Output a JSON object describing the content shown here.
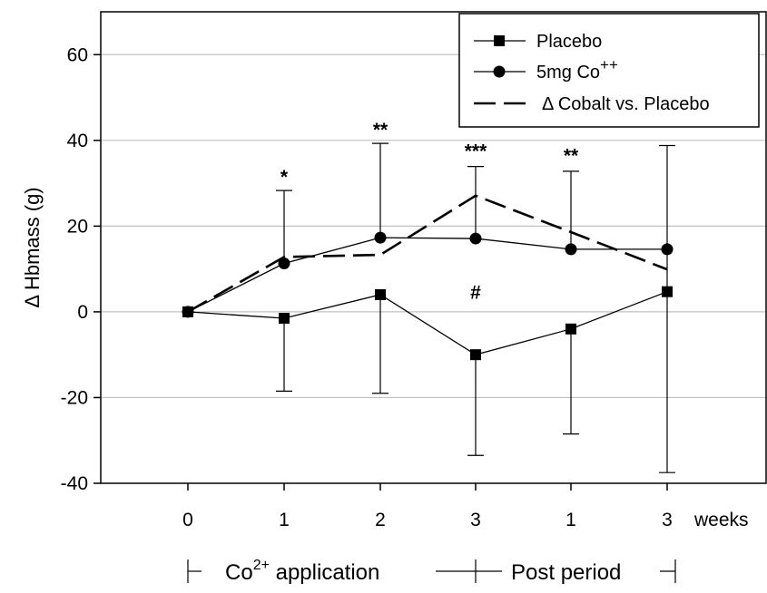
{
  "chart_data": {
    "type": "line",
    "ylabel": "Δ Hbmass (g)",
    "ylim": [
      -40,
      70
    ],
    "yticks": [
      -40,
      -20,
      0,
      20,
      40,
      60
    ],
    "grid": true,
    "legend_position": "top-right",
    "x_unit": "weeks",
    "categories": [
      "0",
      "1",
      "2",
      "3",
      "1",
      "3"
    ],
    "series": [
      {
        "name": "Placebo",
        "marker": "square",
        "line": "solid",
        "values": [
          0,
          -1.5,
          4,
          -10,
          -4,
          4.7
        ],
        "error_low": [
          null,
          -18.5,
          -19,
          -33.5,
          -28.5,
          -37.5
        ],
        "error_high": [
          null,
          null,
          null,
          null,
          null,
          38.8
        ]
      },
      {
        "name": "5mg Co",
        "name_sup": "++",
        "marker": "circle",
        "line": "solid",
        "values": [
          0,
          11.3,
          17.3,
          17.1,
          14.6,
          14.6
        ],
        "error_high": [
          null,
          28.3,
          39.3,
          33.9,
          32.8,
          null
        ]
      },
      {
        "name": "Δ Cobalt vs. Placebo",
        "marker": "none",
        "line": "dashed",
        "values": [
          0,
          12.8,
          13.3,
          27.1,
          18.6,
          9.9
        ]
      }
    ],
    "annotations": [
      {
        "text": "*",
        "x_index": 1,
        "y": 30
      },
      {
        "text": "**",
        "x_index": 2,
        "y": 41
      },
      {
        "text": "***",
        "x_index": 3,
        "y": 36
      },
      {
        "text": "**",
        "x_index": 4,
        "y": 35
      },
      {
        "text": "#",
        "x_index": 3,
        "y": 3
      }
    ],
    "periods": [
      {
        "label": "Co",
        "label_sup": "2+",
        "label_rest": " application"
      },
      {
        "label": "Post period"
      }
    ]
  },
  "colors": {
    "line": "#000000",
    "grid": "#c0c0c0",
    "background": "#ffffff"
  }
}
